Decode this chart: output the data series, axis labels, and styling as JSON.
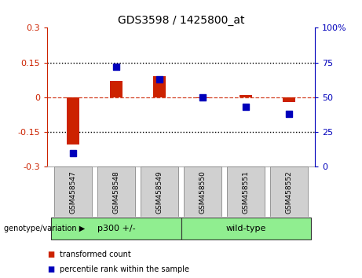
{
  "title": "GDS3598 / 1425800_at",
  "samples": [
    "GSM458547",
    "GSM458548",
    "GSM458549",
    "GSM458550",
    "GSM458551",
    "GSM458552"
  ],
  "red_values": [
    -0.205,
    0.07,
    0.09,
    -0.005,
    0.01,
    -0.02
  ],
  "blue_values_pct": [
    10,
    72,
    63,
    50,
    43,
    38
  ],
  "ylim_left": [
    -0.3,
    0.3
  ],
  "ylim_right": [
    0,
    100
  ],
  "yticks_left": [
    -0.3,
    -0.15,
    0,
    0.15,
    0.3
  ],
  "yticks_right": [
    0,
    25,
    50,
    75,
    100
  ],
  "ytick_labels_left": [
    "-0.3",
    "-0.15",
    "0",
    "0.15",
    "0.3"
  ],
  "ytick_labels_right": [
    "0",
    "25",
    "50",
    "75",
    "100%"
  ],
  "hlines_dotted": [
    0.15,
    -0.15
  ],
  "hline_dashed": 0,
  "group1_label": "p300 +/-",
  "group2_label": "wild-type",
  "group1_color": "#90EE90",
  "group2_color": "#90EE90",
  "genotype_label": "genotype/variation",
  "legend_red": "transformed count",
  "legend_blue": "percentile rank within the sample",
  "red_color": "#CC2200",
  "blue_color": "#0000BB",
  "bar_width": 0.3,
  "dot_size": 35,
  "background_color": "#ffffff",
  "plot_bg_color": "#ffffff",
  "sample_box_color": "#d0d0d0",
  "sample_box_edge": "#888888"
}
